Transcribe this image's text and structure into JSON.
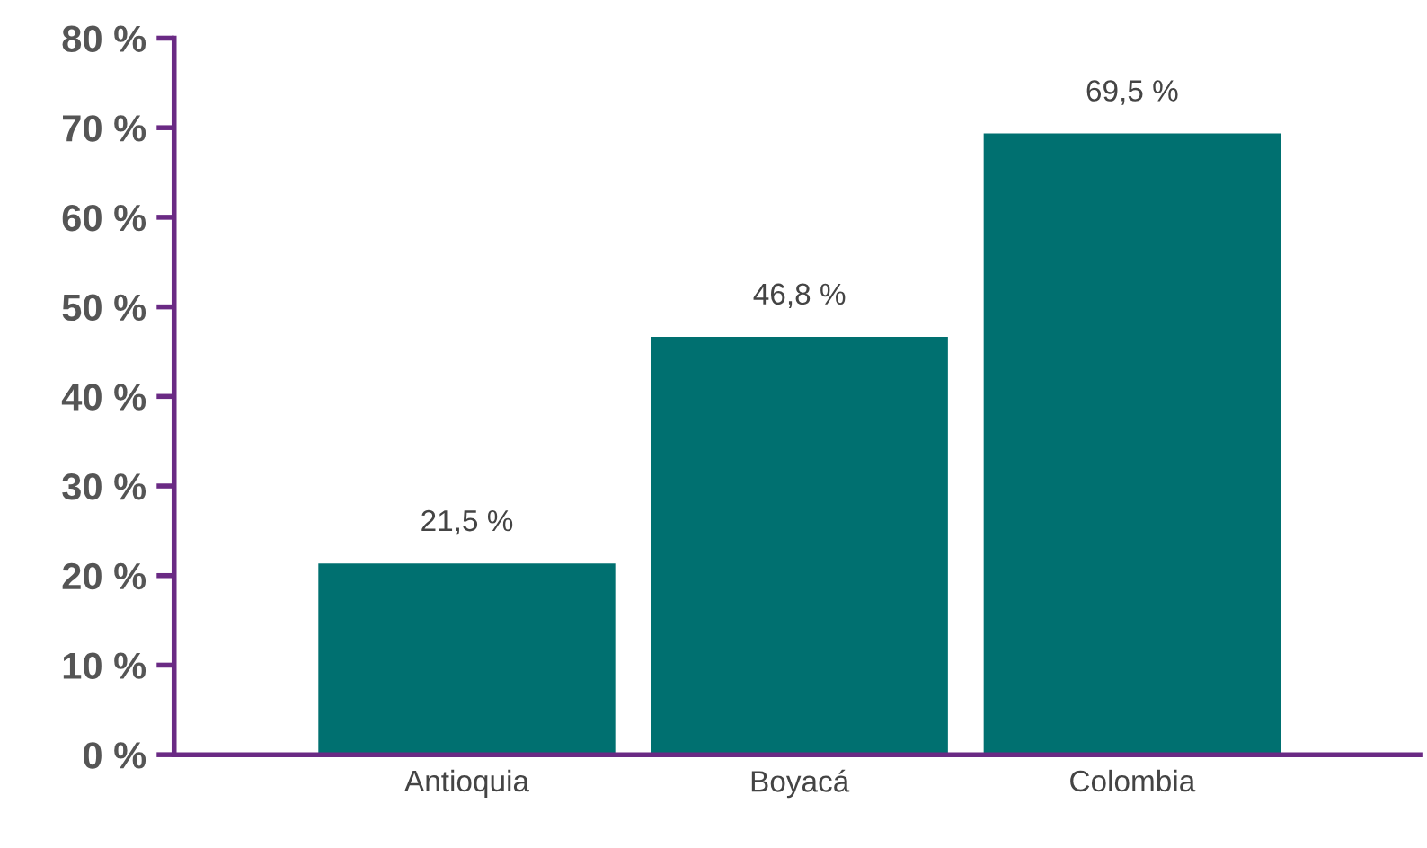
{
  "chart_data": {
    "type": "bar",
    "categories": [
      "Antioquia",
      "Boyacá",
      "Colombia"
    ],
    "values": [
      21.5,
      46.8,
      69.5
    ],
    "value_labels": [
      "21,5 %",
      "46,8 %",
      "69,5 %"
    ],
    "color": "#007070",
    "ylim": [
      0,
      80
    ],
    "yticks": [
      {
        "value": 0,
        "label": "0 %"
      },
      {
        "value": 10,
        "label": "10 %"
      },
      {
        "value": 20,
        "label": "20 %"
      },
      {
        "value": 30,
        "label": "30 %"
      },
      {
        "value": 40,
        "label": "40 %"
      },
      {
        "value": 50,
        "label": "50 %"
      },
      {
        "value": 60,
        "label": "60 %"
      },
      {
        "value": 70,
        "label": "70 %"
      },
      {
        "value": 80,
        "label": "80 %"
      }
    ],
    "grid": false,
    "legend": false
  }
}
